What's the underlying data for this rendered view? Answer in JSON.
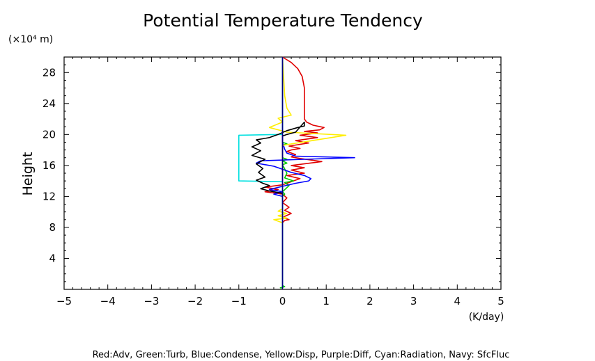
{
  "chart_data": {
    "type": "line",
    "title": "Potential Temperature Tendency",
    "xlabel": "(K/day)",
    "ylabel": "Height",
    "y_unit_label": "(×10⁴ m)",
    "xlim": [
      -5,
      5
    ],
    "ylim": [
      0,
      30
    ],
    "x_ticks": [
      -5,
      -4,
      -3,
      -2,
      -1,
      0,
      1,
      2,
      3,
      4,
      5
    ],
    "y_ticks": [
      4,
      8,
      12,
      16,
      20,
      24,
      28
    ],
    "caption": "Red:Adv, Green:Turb, Blue:Condense, Yellow:Disp, Purple:Diff, Cyan:Radiation, Navy: SfcFluc",
    "grid": false,
    "series": [
      {
        "name": "Red:Adv",
        "color": "#e00000",
        "points": [
          [
            0.0,
            0.2
          ],
          [
            0.0,
            8.6
          ],
          [
            0.05,
            8.9
          ],
          [
            0.15,
            9.0
          ],
          [
            0.0,
            9.3
          ],
          [
            0.2,
            9.8
          ],
          [
            0.05,
            10.2
          ],
          [
            0.15,
            10.6
          ],
          [
            0.0,
            11.2
          ],
          [
            0.1,
            11.8
          ],
          [
            0.0,
            12.3
          ],
          [
            -0.4,
            12.6
          ],
          [
            -0.1,
            12.9
          ],
          [
            -0.4,
            13.2
          ],
          [
            0.0,
            13.5
          ],
          [
            0.2,
            13.9
          ],
          [
            0.4,
            14.3
          ],
          [
            0.1,
            14.7
          ],
          [
            0.5,
            15.0
          ],
          [
            0.2,
            15.4
          ],
          [
            0.5,
            15.7
          ],
          [
            0.2,
            16.0
          ],
          [
            0.9,
            16.5
          ],
          [
            0.4,
            16.9
          ],
          [
            0.2,
            17.1
          ],
          [
            0.3,
            17.4
          ],
          [
            0.1,
            17.8
          ],
          [
            0.2,
            18.0
          ],
          [
            0.4,
            18.2
          ],
          [
            0.15,
            18.5
          ],
          [
            0.6,
            18.9
          ],
          [
            0.3,
            19.2
          ],
          [
            0.8,
            19.6
          ],
          [
            0.4,
            19.9
          ],
          [
            0.8,
            20.2
          ],
          [
            0.5,
            20.4
          ],
          [
            0.85,
            20.6
          ],
          [
            0.95,
            20.9
          ],
          [
            0.7,
            21.2
          ],
          [
            0.55,
            21.6
          ],
          [
            0.5,
            22.0
          ],
          [
            0.5,
            24.0
          ],
          [
            0.5,
            26.0
          ],
          [
            0.45,
            27.5
          ],
          [
            0.35,
            28.5
          ],
          [
            0.2,
            29.3
          ],
          [
            0.0,
            30.0
          ]
        ]
      },
      {
        "name": "Green:Turb",
        "color": "#00cc00",
        "points": [
          [
            0.0,
            0.2
          ],
          [
            -0.05,
            0.2
          ],
          [
            0.05,
            0.35
          ],
          [
            0.0,
            0.5
          ],
          [
            0.0,
            12.0
          ],
          [
            0.05,
            12.3
          ],
          [
            0.0,
            12.6
          ],
          [
            0.15,
            13.4
          ],
          [
            0.05,
            13.8
          ],
          [
            0.25,
            14.0
          ],
          [
            0.05,
            14.4
          ],
          [
            0.1,
            15.0
          ],
          [
            0.0,
            16.1
          ],
          [
            0.1,
            16.3
          ],
          [
            0.0,
            16.6
          ],
          [
            0.1,
            16.8
          ],
          [
            0.0,
            17.0
          ],
          [
            0.0,
            18.6
          ],
          [
            0.1,
            18.8
          ],
          [
            0.0,
            19.0
          ],
          [
            0.0,
            30.0
          ]
        ]
      },
      {
        "name": "Blue:Condense",
        "color": "#0000ff",
        "points": [
          [
            0.0,
            0.2
          ],
          [
            0.0,
            12.0
          ],
          [
            -0.2,
            12.3
          ],
          [
            0.0,
            12.6
          ],
          [
            -0.3,
            12.9
          ],
          [
            0.0,
            13.3
          ],
          [
            0.3,
            13.7
          ],
          [
            0.6,
            14.0
          ],
          [
            0.65,
            14.3
          ],
          [
            0.5,
            14.7
          ],
          [
            0.2,
            15.1
          ],
          [
            0.0,
            15.5
          ],
          [
            -0.2,
            15.9
          ],
          [
            -0.6,
            16.3
          ],
          [
            -0.5,
            16.6
          ],
          [
            0.5,
            16.8
          ],
          [
            1.65,
            17.0
          ],
          [
            0.3,
            17.2
          ],
          [
            0.1,
            17.6
          ],
          [
            0.05,
            18.1
          ],
          [
            0.0,
            19.0
          ],
          [
            0.0,
            30.0
          ]
        ]
      },
      {
        "name": "Yellow:Disp",
        "color": "#ffee00",
        "points": [
          [
            0.0,
            0.2
          ],
          [
            0.0,
            8.6
          ],
          [
            -0.2,
            9.0
          ],
          [
            0.1,
            9.2
          ],
          [
            -0.1,
            9.5
          ],
          [
            0.1,
            9.8
          ],
          [
            -0.1,
            10.1
          ],
          [
            0.0,
            10.4
          ],
          [
            0.0,
            18.6
          ],
          [
            1.45,
            19.9
          ],
          [
            0.1,
            20.3
          ],
          [
            -0.3,
            20.9
          ],
          [
            0.0,
            21.6
          ],
          [
            -0.1,
            22.1
          ],
          [
            0.2,
            22.5
          ],
          [
            0.1,
            23.4
          ],
          [
            0.05,
            25.0
          ],
          [
            0.0,
            30.0
          ]
        ]
      },
      {
        "name": "Purple:Diff",
        "color": "#800080",
        "points": [
          [
            0.0,
            0.2
          ],
          [
            0.0,
            30.0
          ]
        ]
      },
      {
        "name": "Cyan:Radiation",
        "color": "#00e0e0",
        "points": [
          [
            0.0,
            0.2
          ],
          [
            0.0,
            13.9
          ],
          [
            -1.0,
            14.0
          ],
          [
            -1.0,
            19.9
          ],
          [
            0.0,
            20.0
          ],
          [
            0.0,
            30.0
          ]
        ]
      },
      {
        "name": "Black",
        "color": "#000000",
        "points": [
          [
            0.0,
            12.4
          ],
          [
            -0.3,
            12.7
          ],
          [
            -0.5,
            13.0
          ],
          [
            -0.3,
            13.4
          ],
          [
            -0.45,
            13.7
          ],
          [
            -0.6,
            14.1
          ],
          [
            -0.4,
            14.5
          ],
          [
            -0.55,
            15.1
          ],
          [
            -0.45,
            15.6
          ],
          [
            -0.6,
            16.2
          ],
          [
            -0.4,
            16.8
          ],
          [
            -0.7,
            17.3
          ],
          [
            -0.5,
            17.9
          ],
          [
            -0.7,
            18.4
          ],
          [
            -0.5,
            18.9
          ],
          [
            -0.6,
            19.3
          ],
          [
            -0.3,
            19.6
          ],
          [
            -0.1,
            20.0
          ],
          [
            0.1,
            20.5
          ],
          [
            0.35,
            20.9
          ],
          [
            0.5,
            21.1
          ],
          [
            0.5,
            21.6
          ],
          [
            0.3,
            20.3
          ],
          [
            0.1,
            20.0
          ],
          [
            0.0,
            19.8
          ]
        ]
      },
      {
        "name": "Navy: SfcFluc",
        "color": "#000080",
        "points": [
          [
            0.0,
            0.0
          ],
          [
            0.0,
            30.0
          ]
        ]
      }
    ]
  }
}
